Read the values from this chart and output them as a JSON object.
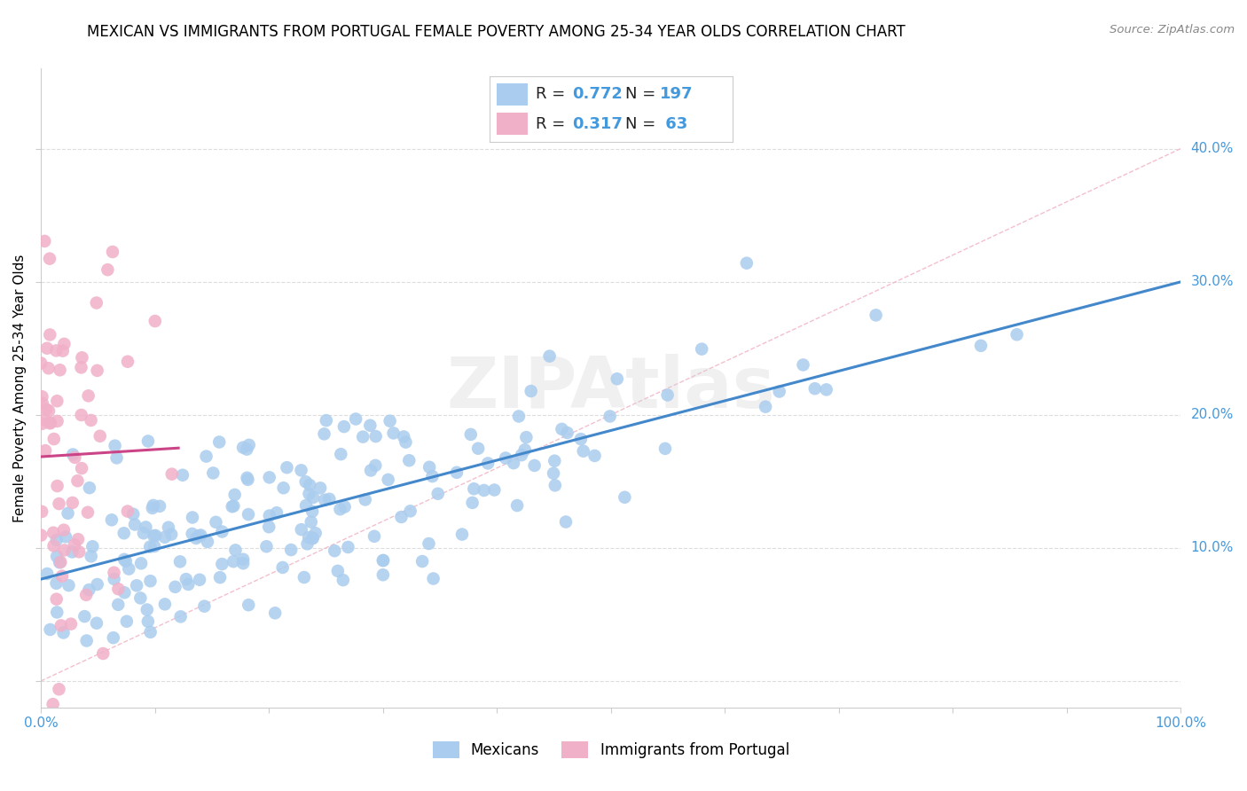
{
  "title": "MEXICAN VS IMMIGRANTS FROM PORTUGAL FEMALE POVERTY AMONG 25-34 YEAR OLDS CORRELATION CHART",
  "source": "Source: ZipAtlas.com",
  "ylabel": "Female Poverty Among 25-34 Year Olds",
  "xlim": [
    0.0,
    1.0
  ],
  "ylim": [
    -0.02,
    0.46
  ],
  "xticks": [
    0.0,
    0.1,
    0.2,
    0.3,
    0.4,
    0.5,
    0.6,
    0.7,
    0.8,
    0.9,
    1.0
  ],
  "xticklabels_show": [
    "0.0%",
    "",
    "",
    "",
    "",
    "",
    "",
    "",
    "",
    "",
    "100.0%"
  ],
  "yticks": [
    0.0,
    0.1,
    0.2,
    0.3,
    0.4
  ],
  "yticklabels": [
    "",
    "10.0%",
    "20.0%",
    "30.0%",
    "40.0%"
  ],
  "blue_color": "#aaccee",
  "pink_color": "#f0b0c8",
  "blue_line_color": "#4488cc",
  "pink_line_color": "#cc4488",
  "diag_line_color": "#f0b0c0",
  "grid_color": "#dddddd",
  "watermark": "ZIPAtlas",
  "R_blue": 0.772,
  "N_blue": 197,
  "R_pink": 0.317,
  "N_pink": 63,
  "legend_blue": "Mexicans",
  "legend_pink": "Immigrants from Portugal",
  "title_fontsize": 12,
  "axis_label_fontsize": 11,
  "tick_fontsize": 11,
  "legend_fontsize": 13,
  "legend_color": "#4499dd",
  "seed_blue": 42,
  "seed_pink": 7
}
